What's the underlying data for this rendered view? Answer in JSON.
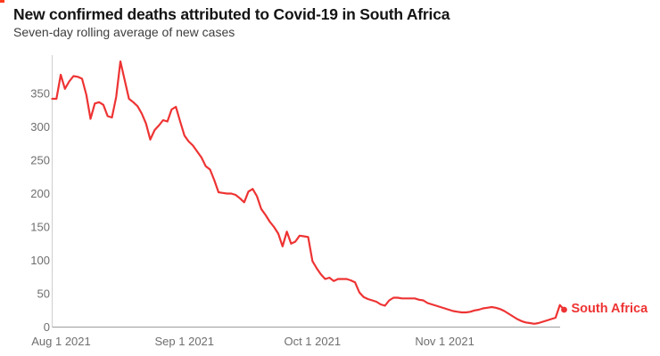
{
  "header": {
    "title": "New confirmed deaths attributed to Covid-19 in South Africa",
    "subtitle": "Seven-day rolling average of new cases"
  },
  "corner_mark_color": "#ff3b1f",
  "axis_colors": {
    "y_axis_line": "#cfcfcf",
    "x_baseline": "#9c9c9c",
    "tick_text": "#6e6e6e"
  },
  "chart_data": {
    "type": "line",
    "title": "New confirmed deaths attributed to Covid-19 in South Africa",
    "subtitle": "Seven-day rolling average of new cases",
    "grid": "off",
    "legend": "end-of-line-label",
    "end_label": "South Africa",
    "end_marker": "dot",
    "ylim": [
      0,
      400
    ],
    "yticks": [
      0,
      50,
      100,
      150,
      200,
      250,
      300,
      350
    ],
    "xticks": [
      {
        "label": "Aug 1 2021",
        "day_index": 0
      },
      {
        "label": "Sep 1 2021",
        "day_index": 31
      },
      {
        "label": "Oct 1 2021",
        "day_index": 61
      },
      {
        "label": "Nov 1 2021",
        "day_index": 92
      }
    ],
    "x_start": "2021-08-01",
    "x_end": "2021-11-29",
    "dates": [
      "2021-08-01",
      "2021-08-02",
      "2021-08-03",
      "2021-08-04",
      "2021-08-05",
      "2021-08-06",
      "2021-08-07",
      "2021-08-08",
      "2021-08-09",
      "2021-08-10",
      "2021-08-11",
      "2021-08-12",
      "2021-08-13",
      "2021-08-14",
      "2021-08-15",
      "2021-08-16",
      "2021-08-17",
      "2021-08-18",
      "2021-08-19",
      "2021-08-20",
      "2021-08-21",
      "2021-08-22",
      "2021-08-23",
      "2021-08-24",
      "2021-08-25",
      "2021-08-26",
      "2021-08-27",
      "2021-08-28",
      "2021-08-29",
      "2021-08-30",
      "2021-08-31",
      "2021-09-01",
      "2021-09-02",
      "2021-09-03",
      "2021-09-04",
      "2021-09-05",
      "2021-09-06",
      "2021-09-07",
      "2021-09-08",
      "2021-09-09",
      "2021-09-10",
      "2021-09-11",
      "2021-09-12",
      "2021-09-13",
      "2021-09-14",
      "2021-09-15",
      "2021-09-16",
      "2021-09-17",
      "2021-09-18",
      "2021-09-19",
      "2021-09-20",
      "2021-09-21",
      "2021-09-22",
      "2021-09-23",
      "2021-09-24",
      "2021-09-25",
      "2021-09-26",
      "2021-09-27",
      "2021-09-28",
      "2021-09-29",
      "2021-09-30",
      "2021-10-01",
      "2021-10-02",
      "2021-10-03",
      "2021-10-04",
      "2021-10-05",
      "2021-10-06",
      "2021-10-07",
      "2021-10-08",
      "2021-10-09",
      "2021-10-10",
      "2021-10-11",
      "2021-10-12",
      "2021-10-13",
      "2021-10-14",
      "2021-10-15",
      "2021-10-16",
      "2021-10-17",
      "2021-10-18",
      "2021-10-19",
      "2021-10-20",
      "2021-10-21",
      "2021-10-22",
      "2021-10-23",
      "2021-10-24",
      "2021-10-25",
      "2021-10-26",
      "2021-10-27",
      "2021-10-28",
      "2021-10-29",
      "2021-10-30",
      "2021-10-31",
      "2021-11-01",
      "2021-11-02",
      "2021-11-03",
      "2021-11-04",
      "2021-11-05",
      "2021-11-06",
      "2021-11-07",
      "2021-11-08",
      "2021-11-09",
      "2021-11-10",
      "2021-11-11",
      "2021-11-12",
      "2021-11-13",
      "2021-11-14",
      "2021-11-15",
      "2021-11-16",
      "2021-11-17",
      "2021-11-18",
      "2021-11-19",
      "2021-11-20",
      "2021-11-21",
      "2021-11-22",
      "2021-11-23",
      "2021-11-24",
      "2021-11-25",
      "2021-11-26",
      "2021-11-27",
      "2021-11-28",
      "2021-11-29"
    ],
    "series": [
      {
        "name": "South Africa",
        "color": "#ee3333",
        "values": [
          342,
          342,
          378,
          357,
          368,
          376,
          375,
          372,
          348,
          312,
          335,
          337,
          333,
          316,
          314,
          345,
          398,
          370,
          342,
          337,
          331,
          320,
          305,
          281,
          295,
          302,
          310,
          308,
          326,
          330,
          308,
          287,
          278,
          272,
          263,
          254,
          241,
          236,
          220,
          202,
          201,
          200,
          200,
          198,
          193,
          187,
          203,
          207,
          196,
          177,
          168,
          158,
          150,
          140,
          121,
          143,
          125,
          128,
          137,
          136,
          135,
          99,
          88,
          79,
          72,
          74,
          69,
          72,
          72,
          72,
          70,
          67,
          52,
          45,
          42,
          40,
          38,
          34,
          32,
          40,
          44,
          44,
          43,
          43,
          43,
          43,
          41,
          40,
          36,
          34,
          32,
          30,
          28,
          26,
          24,
          23,
          22,
          22,
          23,
          25,
          26,
          28,
          29,
          30,
          29,
          27,
          24,
          20,
          16,
          12,
          9,
          7,
          6,
          5,
          6,
          8,
          10,
          12,
          14,
          33,
          26
        ]
      }
    ]
  }
}
